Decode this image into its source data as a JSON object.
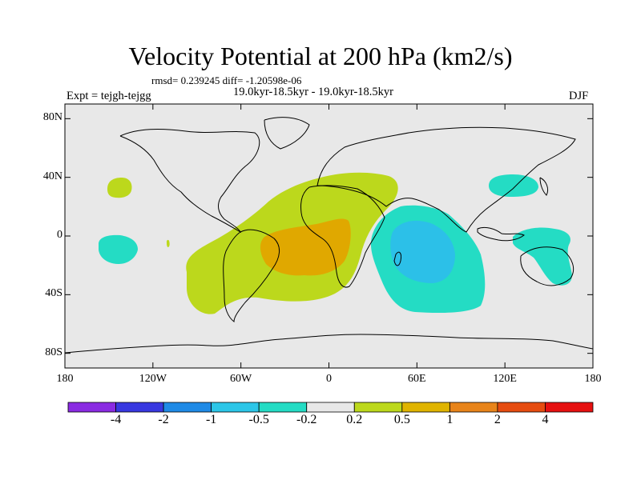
{
  "title": "Velocity Potential at 200 hPa (km2/s)",
  "stats": "rmsd= 0.239245 diff= -1.20598e-06",
  "period": "19.0kyr-18.5kyr - 19.0kyr-18.5kyr",
  "experiment": "Expt = tejgh-tejgg",
  "season": "DJF",
  "axes": {
    "y_ticks": [
      {
        "value": 80,
        "label": "80N"
      },
      {
        "value": 40,
        "label": "40N"
      },
      {
        "value": 0,
        "label": "0"
      },
      {
        "value": -40,
        "label": "40S"
      },
      {
        "value": -80,
        "label": "80S"
      }
    ],
    "x_ticks": [
      {
        "value": -180,
        "label": "180"
      },
      {
        "value": -120,
        "label": "120W"
      },
      {
        "value": -60,
        "label": "60W"
      },
      {
        "value": 0,
        "label": "0"
      },
      {
        "value": 60,
        "label": "60E"
      },
      {
        "value": 120,
        "label": "120E"
      },
      {
        "value": 180,
        "label": "180"
      }
    ]
  },
  "colorbar": {
    "colors": [
      "#8a2be2",
      "#3838e0",
      "#1f8ae6",
      "#2cc6e8",
      "#24dcc4",
      "#e8e8e8",
      "#bcd81c",
      "#e0b400",
      "#e8841a",
      "#e64c10",
      "#e61010"
    ],
    "labels": [
      "-4",
      "-2",
      "-1",
      "-0.5",
      "-0.2",
      "0.2",
      "0.5",
      "1",
      "2",
      "4"
    ]
  },
  "colors": {
    "background_field": "#e8e8e8",
    "positive_weak": "#bcd81c",
    "positive_mid": "#e0a800",
    "negative_weak": "#24dcc4",
    "negative_mid": "#2cc0e8",
    "coastline": "#000000"
  }
}
